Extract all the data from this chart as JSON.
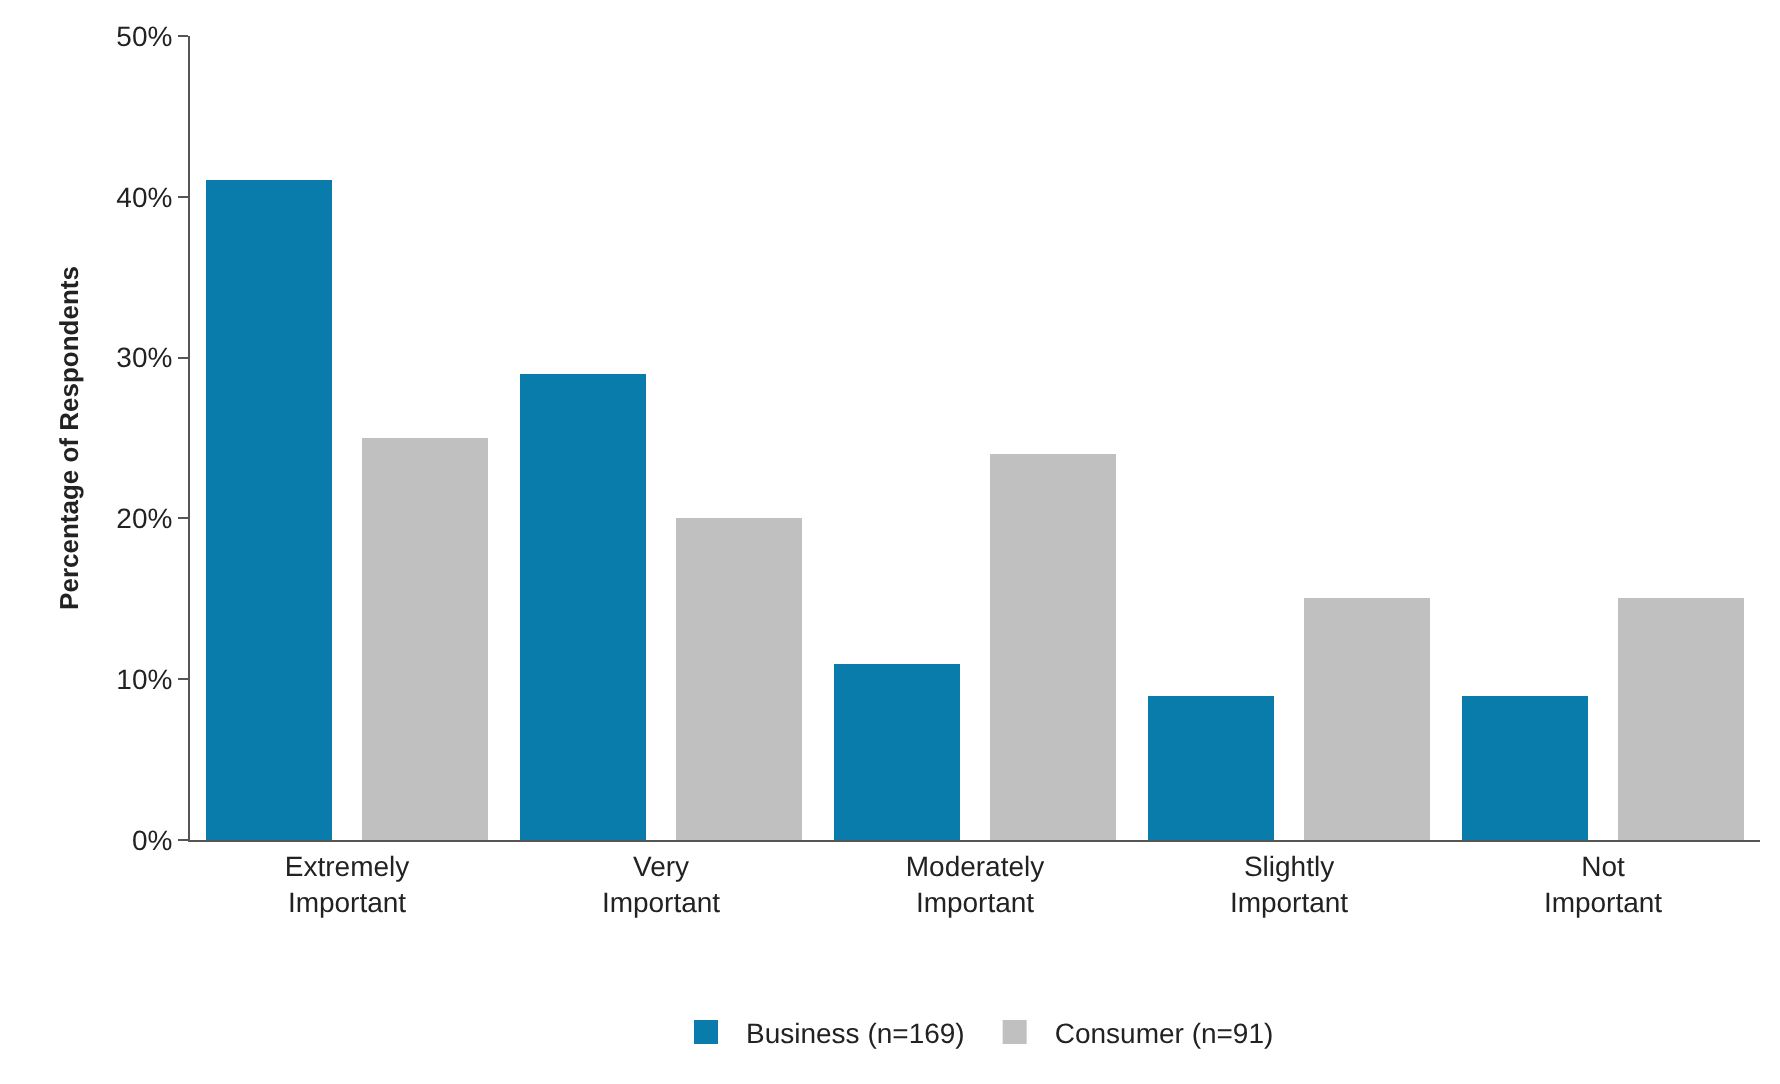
{
  "chart_data": {
    "type": "bar",
    "ylabel": "Percentage of Respondents",
    "categories": [
      "Extremely\nImportant",
      "Very\nImportant",
      "Moderately\nImportant",
      "Slightly\nImportant",
      "Not\nImportant"
    ],
    "series": [
      {
        "name": "Business (n=169)",
        "color": "#0a7cab",
        "values": [
          41,
          29,
          11,
          9,
          9
        ]
      },
      {
        "name": "Consumer (n=91)",
        "color": "#c0c0c0",
        "values": [
          25,
          20,
          24,
          15,
          15
        ]
      }
    ],
    "ylim": [
      0,
      50
    ],
    "yticks": [
      {
        "value": 0,
        "label": "0%"
      },
      {
        "value": 10,
        "label": "10%"
      },
      {
        "value": 20,
        "label": "20%"
      },
      {
        "value": 30,
        "label": "30%"
      },
      {
        "value": 40,
        "label": "40%"
      },
      {
        "value": 50,
        "label": "50%"
      }
    ],
    "legend": "bottom"
  }
}
